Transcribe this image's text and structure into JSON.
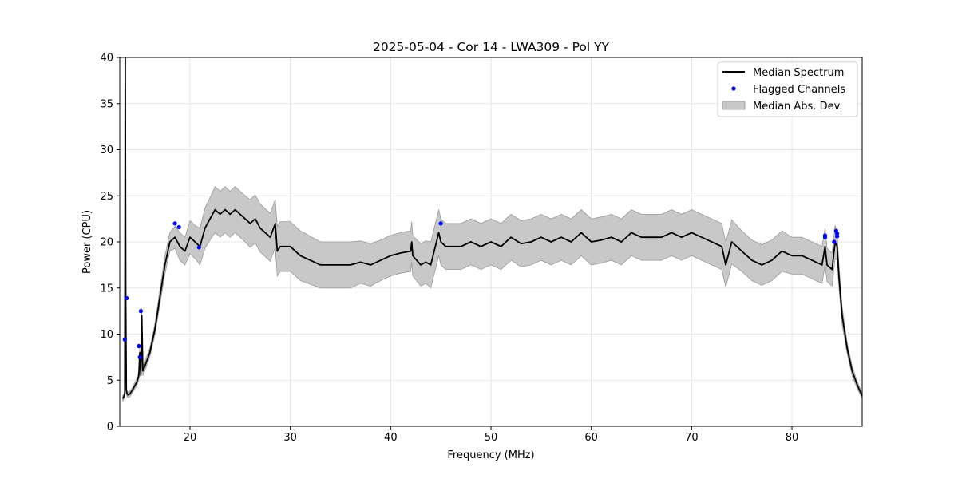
{
  "chart_data": {
    "type": "line",
    "title": "2025-05-04 - Cor 14 - LWA309 - Pol YY",
    "xlabel": "Frequency (MHz)",
    "ylabel": "Power (CPU)",
    "xlim": [
      13.0,
      87.0
    ],
    "ylim": [
      0,
      40
    ],
    "xticks": [
      20,
      30,
      40,
      50,
      60,
      70,
      80
    ],
    "yticks": [
      0,
      5,
      10,
      15,
      20,
      25,
      30,
      35,
      40
    ],
    "grid": true,
    "legend_position": "top-right",
    "legend": [
      "Median Spectrum",
      "Flagged Channels",
      "Median Abs. Dev."
    ],
    "colors": {
      "median": "#000000",
      "flagged": "#0000ff",
      "mad_fill": "#c8c8c8",
      "mad_edge": "#9a9a9a",
      "grid": "#e0e0e0"
    },
    "series": [
      {
        "name": "Median Spectrum",
        "x": [
          13.3,
          13.5,
          13.55,
          13.6,
          13.65,
          13.7,
          13.8,
          14.0,
          14.3,
          14.7,
          14.9,
          15.0,
          15.1,
          15.2,
          15.3,
          15.5,
          16.0,
          16.5,
          17.0,
          17.5,
          18.0,
          18.5,
          19.0,
          19.5,
          20.0,
          20.5,
          21.0,
          21.5,
          22.0,
          22.5,
          23.0,
          23.5,
          24.0,
          24.5,
          25.0,
          25.5,
          26.0,
          26.5,
          27.0,
          27.5,
          28.0,
          28.5,
          28.7,
          29.0,
          30.0,
          31.0,
          32.0,
          33.0,
          34.0,
          35.0,
          36.0,
          37.0,
          38.0,
          39.0,
          40.0,
          41.0,
          42.0,
          42.1,
          42.2,
          43.0,
          43.5,
          44.0,
          44.8,
          45.0,
          45.5,
          46.0,
          47.0,
          48.0,
          49.0,
          50.0,
          51.0,
          52.0,
          53.0,
          54.0,
          55.0,
          56.0,
          57.0,
          58.0,
          59.0,
          60.0,
          61.0,
          62.0,
          63.0,
          64.0,
          65.0,
          66.0,
          67.0,
          68.0,
          69.0,
          70.0,
          71.0,
          72.0,
          73.0,
          73.4,
          74.0,
          75.0,
          76.0,
          77.0,
          78.0,
          79.0,
          80.0,
          81.0,
          82.0,
          83.0,
          83.3,
          83.5,
          84.0,
          84.3,
          84.5,
          84.7,
          85.0,
          85.5,
          86.0,
          86.5,
          87.0
        ],
        "values": [
          3.0,
          3.5,
          40.0,
          14.0,
          4.0,
          3.6,
          3.4,
          3.5,
          4.0,
          4.8,
          5.5,
          8.0,
          5.5,
          12.0,
          6.0,
          6.5,
          8.0,
          10.5,
          14.0,
          17.5,
          20.0,
          20.5,
          19.5,
          19.0,
          20.5,
          20.0,
          19.5,
          21.5,
          22.5,
          23.5,
          23.0,
          23.5,
          23.0,
          23.5,
          23.0,
          22.5,
          22.0,
          22.5,
          21.5,
          21.0,
          20.5,
          22.0,
          19.0,
          19.5,
          19.5,
          18.5,
          18.0,
          17.5,
          17.5,
          17.5,
          17.5,
          17.8,
          17.5,
          18.0,
          18.5,
          18.8,
          19.0,
          20.0,
          18.5,
          17.5,
          17.8,
          17.5,
          21.0,
          20.0,
          19.5,
          19.5,
          19.5,
          20.0,
          19.5,
          20.0,
          19.5,
          20.5,
          19.8,
          20.0,
          20.5,
          20.0,
          20.5,
          20.0,
          21.0,
          20.0,
          20.2,
          20.5,
          20.0,
          21.0,
          20.5,
          20.5,
          20.5,
          21.0,
          20.5,
          21.0,
          20.5,
          20.0,
          19.5,
          17.5,
          20.0,
          19.0,
          18.0,
          17.5,
          18.0,
          19.0,
          18.5,
          18.5,
          18.0,
          17.5,
          19.5,
          17.5,
          17.0,
          20.0,
          19.5,
          16.0,
          12.0,
          8.5,
          6.0,
          4.5,
          3.3
        ],
        "mad": [
          0.3,
          0.3,
          0.4,
          0.4,
          0.3,
          0.3,
          0.3,
          0.3,
          0.3,
          0.4,
          0.5,
          0.6,
          0.5,
          0.8,
          0.5,
          0.5,
          0.5,
          0.6,
          0.8,
          1.0,
          1.0,
          1.2,
          1.5,
          1.5,
          1.8,
          1.8,
          2.0,
          2.2,
          2.3,
          2.5,
          2.5,
          2.5,
          2.5,
          2.5,
          2.5,
          2.5,
          2.6,
          2.6,
          2.6,
          2.6,
          2.6,
          2.6,
          2.7,
          2.7,
          2.7,
          2.7,
          2.6,
          2.5,
          2.5,
          2.5,
          2.5,
          2.3,
          2.3,
          2.2,
          2.2,
          2.2,
          2.2,
          2.2,
          2.2,
          2.3,
          2.3,
          2.5,
          2.5,
          2.5,
          2.5,
          2.5,
          2.5,
          2.5,
          2.5,
          2.5,
          2.5,
          2.5,
          2.5,
          2.5,
          2.5,
          2.5,
          2.5,
          2.5,
          2.5,
          2.5,
          2.5,
          2.5,
          2.5,
          2.5,
          2.5,
          2.5,
          2.5,
          2.5,
          2.5,
          2.5,
          2.5,
          2.5,
          2.5,
          2.4,
          2.4,
          2.2,
          2.2,
          2.2,
          2.2,
          2.2,
          2.0,
          2.0,
          2.0,
          2.0,
          2.0,
          1.8,
          1.8,
          1.8,
          1.5,
          1.2,
          1.0,
          0.6,
          0.5,
          0.4,
          0.3
        ]
      },
      {
        "name": "Flagged Channels",
        "x": [
          13.5,
          13.7,
          14.9,
          15.0,
          15.1,
          18.5,
          18.9,
          20.9,
          45.0,
          83.3,
          83.3,
          84.2,
          84.4,
          84.5,
          84.5
        ],
        "values": [
          9.4,
          13.9,
          8.7,
          7.5,
          12.5,
          22.0,
          21.6,
          19.4,
          22.0,
          20.7,
          20.5,
          20.0,
          21.2,
          20.6,
          20.9
        ]
      }
    ]
  }
}
